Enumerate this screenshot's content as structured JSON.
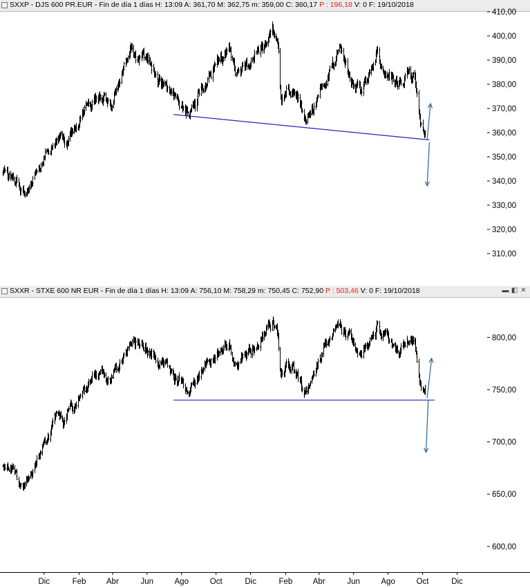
{
  "panels": [
    {
      "symbol_line": "SXXP - DJS 600 PR.EUR - Fin de día 1 días  H: 13:09  A: 361,70  M: 362,75  m: 359,00  C: 360,17",
      "change_text": "P : 196,18",
      "tail_text": "V: 0  F: 19/10/2018"
    },
    {
      "symbol_line": "SXXR - STXE 600 NR EUR - Fin de día 1 días  H: 13:09  A: 756,10  M: 758,29  m: 750,45  C: 752,90",
      "change_text": "P : 503,46",
      "tail_text": "V: 0  F: 19/10/2018"
    }
  ],
  "window_buttons": [
    "▬",
    "◧",
    "✕"
  ],
  "colors": {
    "price": "#000000",
    "support": "#1f24b5",
    "arrow": "#2a6496",
    "change": "#e8201c"
  },
  "chart_data": [
    {
      "type": "line",
      "style": "ohlc daily bars",
      "symbol": "SXXP",
      "ylim": [
        300,
        410
      ],
      "yticks": [
        310,
        320,
        330,
        340,
        350,
        360,
        370,
        380,
        390,
        400,
        410
      ],
      "yticks_text": [
        "310,00",
        "320,00",
        "330,00",
        "340,00",
        "350,00",
        "360,00",
        "370,00",
        "380,00",
        "390,00",
        "400,00",
        "410,00"
      ],
      "x_start": "2016-10-03",
      "x_end": "2019-01-31",
      "series": [
        {
          "values": [
            [
              "2016-10-03",
              344
            ],
            [
              "2016-10-20",
              342
            ],
            [
              "2016-11-08",
              335
            ],
            [
              "2016-11-15",
              337
            ],
            [
              "2016-12-01",
              344
            ],
            [
              "2016-12-15",
              350
            ],
            [
              "2017-01-05",
              357
            ],
            [
              "2017-01-20",
              356
            ],
            [
              "2017-02-08",
              364
            ],
            [
              "2017-03-01",
              372
            ],
            [
              "2017-03-22",
              376
            ],
            [
              "2017-04-12",
              372
            ],
            [
              "2017-05-05",
              387
            ],
            [
              "2017-05-16",
              395
            ],
            [
              "2017-06-01",
              392
            ],
            [
              "2017-06-20",
              388
            ],
            [
              "2017-07-05",
              382
            ],
            [
              "2017-07-20",
              379
            ],
            [
              "2017-08-10",
              373
            ],
            [
              "2017-08-29",
              368
            ],
            [
              "2017-09-15",
              376
            ],
            [
              "2017-10-05",
              385
            ],
            [
              "2017-10-25",
              390
            ],
            [
              "2017-11-07",
              395
            ],
            [
              "2017-11-17",
              385
            ],
            [
              "2017-12-05",
              387
            ],
            [
              "2017-12-18",
              391
            ],
            [
              "2018-01-05",
              396
            ],
            [
              "2018-01-23",
              402
            ],
            [
              "2018-02-01",
              396
            ],
            [
              "2018-02-06",
              374
            ],
            [
              "2018-02-15",
              379
            ],
            [
              "2018-02-27",
              378
            ],
            [
              "2018-03-08",
              376
            ],
            [
              "2018-03-23",
              363
            ],
            [
              "2018-04-10",
              373
            ],
            [
              "2018-04-25",
              381
            ],
            [
              "2018-05-10",
              388
            ],
            [
              "2018-05-22",
              396
            ],
            [
              "2018-06-08",
              383
            ],
            [
              "2018-06-28",
              377
            ],
            [
              "2018-07-12",
              383
            ],
            [
              "2018-07-27",
              392
            ],
            [
              "2018-08-10",
              387
            ],
            [
              "2018-08-24",
              383
            ],
            [
              "2018-09-06",
              379
            ],
            [
              "2018-09-21",
              386
            ],
            [
              "2018-10-01",
              382
            ],
            [
              "2018-10-11",
              364
            ],
            [
              "2018-10-19",
              360.17
            ]
          ]
        }
      ],
      "annotations": [
        {
          "type": "support_line",
          "from": [
            "2017-08-01",
            367.5
          ],
          "to": [
            "2018-10-27",
            357
          ]
        },
        {
          "type": "arrow_up",
          "from": [
            "2018-10-23",
            357
          ],
          "to": [
            "2018-10-29",
            372
          ]
        },
        {
          "type": "arrow_down",
          "from": [
            "2018-10-27",
            356
          ],
          "to": [
            "2018-10-23",
            338
          ]
        }
      ]
    },
    {
      "type": "line",
      "style": "ohlc daily bars",
      "symbol": "SXXR",
      "ylim": [
        580,
        830
      ],
      "yticks": [
        600,
        650,
        700,
        750,
        800
      ],
      "yticks_text": [
        "600,00",
        "650,00",
        "700,00",
        "750,00",
        "800,00"
      ],
      "x_start": "2016-10-03",
      "x_end": "2019-01-31",
      "series": [
        {
          "values": [
            [
              "2016-10-03",
              678
            ],
            [
              "2016-10-20",
              673
            ],
            [
              "2016-11-08",
              655
            ],
            [
              "2016-11-15",
              663
            ],
            [
              "2016-12-01",
              680
            ],
            [
              "2016-12-15",
              698
            ],
            [
              "2017-01-05",
              722
            ],
            [
              "2017-01-20",
              718
            ],
            [
              "2017-02-08",
              738
            ],
            [
              "2017-03-01",
              755
            ],
            [
              "2017-03-22",
              765
            ],
            [
              "2017-04-12",
              760
            ],
            [
              "2017-05-05",
              785
            ],
            [
              "2017-05-16",
              796
            ],
            [
              "2017-06-01",
              792
            ],
            [
              "2017-06-20",
              788
            ],
            [
              "2017-07-05",
              778
            ],
            [
              "2017-07-20",
              770
            ],
            [
              "2017-08-10",
              760
            ],
            [
              "2017-08-29",
              752
            ],
            [
              "2017-09-15",
              765
            ],
            [
              "2017-10-05",
              782
            ],
            [
              "2017-10-25",
              788
            ],
            [
              "2017-11-07",
              795
            ],
            [
              "2017-11-17",
              777
            ],
            [
              "2017-12-05",
              781
            ],
            [
              "2017-12-18",
              790
            ],
            [
              "2018-01-05",
              800
            ],
            [
              "2018-01-23",
              815
            ],
            [
              "2018-02-01",
              803
            ],
            [
              "2018-02-06",
              760
            ],
            [
              "2018-02-15",
              770
            ],
            [
              "2018-02-27",
              768
            ],
            [
              "2018-03-08",
              762
            ],
            [
              "2018-03-23",
              745
            ],
            [
              "2018-04-10",
              770
            ],
            [
              "2018-04-25",
              790
            ],
            [
              "2018-05-10",
              802
            ],
            [
              "2018-05-22",
              815
            ],
            [
              "2018-06-08",
              800
            ],
            [
              "2018-06-28",
              782
            ],
            [
              "2018-07-12",
              798
            ],
            [
              "2018-07-27",
              810
            ],
            [
              "2018-08-10",
              800
            ],
            [
              "2018-08-24",
              790
            ],
            [
              "2018-09-06",
              782
            ],
            [
              "2018-09-21",
              798
            ],
            [
              "2018-10-01",
              790
            ],
            [
              "2018-10-11",
              755
            ],
            [
              "2018-10-19",
              752.9
            ]
          ]
        }
      ],
      "annotations": [
        {
          "type": "support_line",
          "from": [
            "2017-08-01",
            740
          ],
          "to": [
            "2018-11-05",
            740
          ]
        },
        {
          "type": "arrow_up",
          "from": [
            "2018-10-23",
            742
          ],
          "to": [
            "2018-10-31",
            780
          ]
        },
        {
          "type": "arrow_down",
          "from": [
            "2018-10-25",
            740
          ],
          "to": [
            "2018-10-21",
            690
          ]
        }
      ]
    }
  ],
  "time_axis": {
    "labels": [
      {
        "text": "Dic",
        "date": "2016-12-15"
      },
      {
        "text": "Feb",
        "date": "2017-02-15"
      },
      {
        "text": "Abr",
        "date": "2017-04-15"
      },
      {
        "text": "Jun",
        "date": "2017-06-15"
      },
      {
        "text": "Ago",
        "date": "2017-08-15"
      },
      {
        "text": "Oct",
        "date": "2017-10-15"
      },
      {
        "text": "Dic",
        "date": "2017-12-15"
      },
      {
        "text": "Feb",
        "date": "2018-02-15"
      },
      {
        "text": "Abr",
        "date": "2018-04-15"
      },
      {
        "text": "Jun",
        "date": "2018-06-15"
      },
      {
        "text": "Ago",
        "date": "2018-08-15"
      },
      {
        "text": "Oct",
        "date": "2018-10-15"
      },
      {
        "text": "Dic",
        "date": "2018-12-15"
      }
    ]
  }
}
